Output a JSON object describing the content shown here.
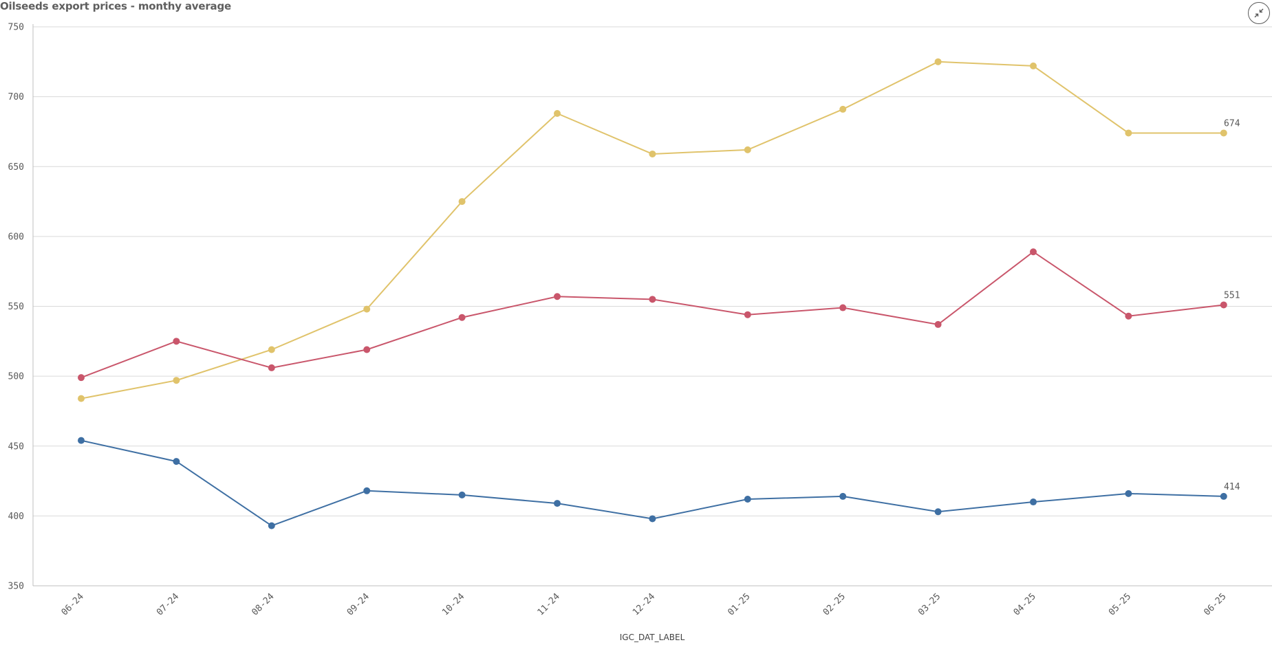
{
  "header": {
    "title": "Oilseeds export prices - monthy average"
  },
  "controls": {
    "collapse_icon": "collapse-icon"
  },
  "chart_data": {
    "type": "line",
    "title": "Oilseeds export prices - monthy average",
    "xlabel": "IGC_DAT_LABEL",
    "ylabel": "",
    "ylim": [
      350,
      750
    ],
    "yticks": [
      350,
      400,
      450,
      500,
      550,
      600,
      650,
      700,
      750
    ],
    "grid": true,
    "legend": "none",
    "categories": [
      "06-24",
      "07-24",
      "08-24",
      "09-24",
      "10-24",
      "11-24",
      "12-24",
      "01-25",
      "02-25",
      "03-25",
      "04-25",
      "05-25",
      "06-25"
    ],
    "series": [
      {
        "color": "#e0c36b",
        "values": [
          484,
          497,
          519,
          548,
          625,
          688,
          659,
          662,
          691,
          725,
          722,
          674,
          674
        ],
        "end_label": "674"
      },
      {
        "color": "#c9566b",
        "values": [
          499,
          525,
          506,
          519,
          542,
          557,
          555,
          544,
          549,
          537,
          589,
          543,
          551
        ],
        "end_label": "551"
      },
      {
        "color": "#3e6fa3",
        "values": [
          454,
          439,
          393,
          418,
          415,
          409,
          398,
          412,
          414,
          403,
          410,
          416,
          414
        ],
        "end_label": "414"
      }
    ]
  }
}
